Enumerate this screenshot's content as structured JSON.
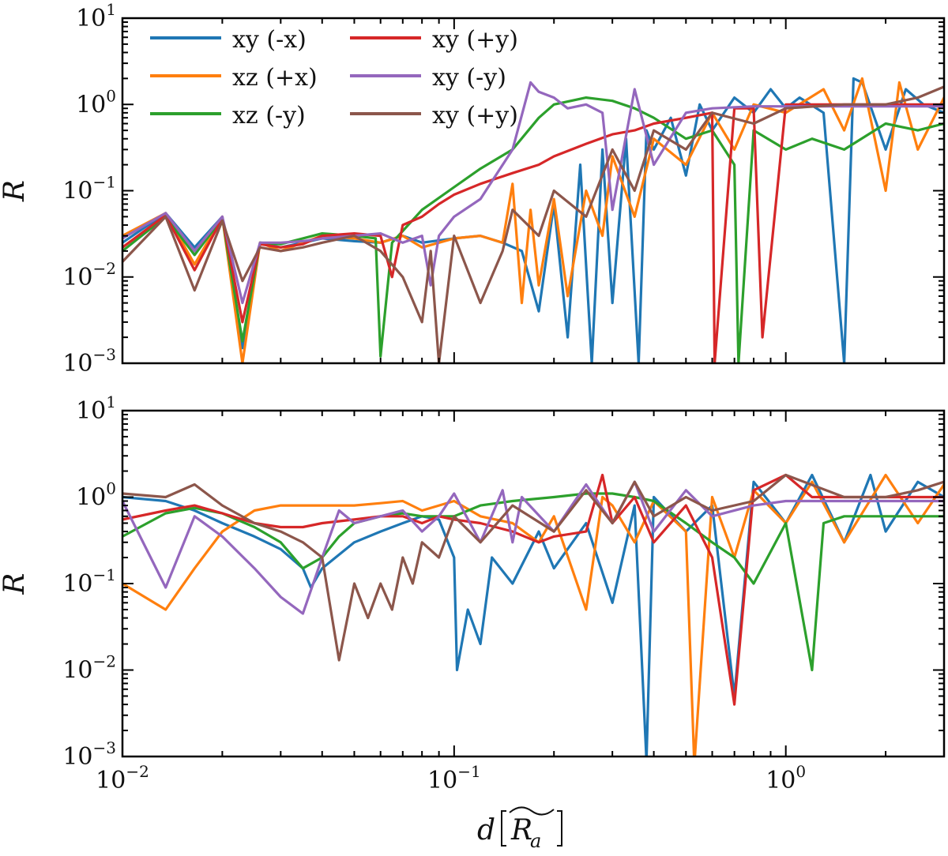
{
  "chart_data": [
    {
      "type": "line",
      "panel": "top",
      "ylabel": "R",
      "xlabel": "",
      "xscale": "log",
      "yscale": "log",
      "xlim": [
        0.01,
        3.0
      ],
      "ylim": [
        0.001,
        10
      ],
      "x_tick_labels": [],
      "y_tick_labels": [
        {
          "base": "10",
          "exp": "−3",
          "value": 0.001
        },
        {
          "base": "10",
          "exp": "−2",
          "value": 0.01
        },
        {
          "base": "10",
          "exp": "−1",
          "value": 0.1
        },
        {
          "base": "10",
          "exp": "0",
          "value": 1
        },
        {
          "base": "10",
          "exp": "1",
          "value": 10
        }
      ],
      "legend": {
        "placement": "top-left",
        "columns": 2
      },
      "series": [
        {
          "name": "xy (-x)",
          "color": "#1f77b4",
          "x": [
            0.01,
            0.0135,
            0.0165,
            0.02,
            0.023,
            0.026,
            0.03,
            0.035,
            0.04,
            0.05,
            0.06,
            0.07,
            0.08,
            0.1,
            0.12,
            0.14,
            0.16,
            0.18,
            0.2,
            0.22,
            0.24,
            0.26,
            0.28,
            0.3,
            0.33,
            0.36,
            0.38,
            0.4,
            0.45,
            0.5,
            0.55,
            0.6,
            0.7,
            0.8,
            0.9,
            1.0,
            1.1,
            1.3,
            1.5,
            1.6,
            1.7,
            2.0,
            2.3,
            2.6,
            3.0
          ],
          "y": [
            0.025,
            0.055,
            0.022,
            0.05,
            0.0015,
            0.025,
            0.022,
            0.025,
            0.028,
            0.026,
            0.025,
            0.03,
            0.025,
            0.028,
            0.03,
            0.025,
            0.02,
            0.004,
            0.07,
            0.002,
            0.2,
            0.001,
            0.3,
            0.005,
            0.4,
            0.001,
            0.5,
            0.3,
            0.7,
            0.15,
            1.0,
            0.5,
            1.2,
            0.8,
            1.5,
            0.9,
            1.2,
            0.8,
            0.001,
            2.0,
            1.8,
            0.3,
            1.5,
            1.0,
            0.8
          ]
        },
        {
          "name": "xz (+x)",
          "color": "#ff7f0e",
          "x": [
            0.01,
            0.0135,
            0.0165,
            0.02,
            0.023,
            0.026,
            0.03,
            0.035,
            0.04,
            0.05,
            0.06,
            0.07,
            0.08,
            0.1,
            0.12,
            0.14,
            0.15,
            0.16,
            0.17,
            0.18,
            0.2,
            0.22,
            0.25,
            0.28,
            0.3,
            0.35,
            0.4,
            0.5,
            0.6,
            0.7,
            0.8,
            1.0,
            1.3,
            1.5,
            1.7,
            2.0,
            2.2,
            2.5,
            3.0
          ],
          "y": [
            0.03,
            0.055,
            0.014,
            0.05,
            0.001,
            0.025,
            0.02,
            0.025,
            0.03,
            0.028,
            0.025,
            0.03,
            0.022,
            0.028,
            0.03,
            0.025,
            0.12,
            0.005,
            0.06,
            0.008,
            0.08,
            0.006,
            0.1,
            0.03,
            0.25,
            0.05,
            0.4,
            0.2,
            0.8,
            0.3,
            1.0,
            0.8,
            1.5,
            0.5,
            2.0,
            0.1,
            1.8,
            0.3,
            1.2
          ]
        },
        {
          "name": "xz (-y)",
          "color": "#2ca02c",
          "x": [
            0.01,
            0.0135,
            0.0165,
            0.02,
            0.023,
            0.026,
            0.03,
            0.035,
            0.04,
            0.05,
            0.058,
            0.06,
            0.065,
            0.08,
            0.1,
            0.12,
            0.15,
            0.18,
            0.2,
            0.25,
            0.3,
            0.35,
            0.4,
            0.5,
            0.6,
            0.7,
            0.72,
            0.8,
            1.0,
            1.2,
            1.5,
            2.0,
            2.5,
            3.0
          ],
          "y": [
            0.02,
            0.05,
            0.018,
            0.048,
            0.0018,
            0.025,
            0.024,
            0.028,
            0.032,
            0.03,
            0.028,
            0.0012,
            0.025,
            0.06,
            0.11,
            0.18,
            0.3,
            0.7,
            1.0,
            1.2,
            1.1,
            0.9,
            0.7,
            0.4,
            0.5,
            0.2,
            0.001,
            0.5,
            0.3,
            0.4,
            0.3,
            0.6,
            0.5,
            0.6
          ]
        },
        {
          "name": "xy (+y)",
          "color": "#d62728",
          "x": [
            0.01,
            0.0135,
            0.0165,
            0.02,
            0.023,
            0.026,
            0.03,
            0.035,
            0.04,
            0.05,
            0.06,
            0.065,
            0.07,
            0.08,
            0.09,
            0.1,
            0.12,
            0.15,
            0.18,
            0.2,
            0.25,
            0.3,
            0.35,
            0.4,
            0.5,
            0.6,
            0.61,
            0.7,
            0.8,
            0.85,
            1.0,
            1.2,
            1.5,
            2.0,
            2.5,
            3.0
          ],
          "y": [
            0.022,
            0.052,
            0.012,
            0.048,
            0.003,
            0.024,
            0.022,
            0.024,
            0.03,
            0.032,
            0.03,
            0.01,
            0.04,
            0.05,
            0.07,
            0.09,
            0.12,
            0.16,
            0.2,
            0.25,
            0.35,
            0.45,
            0.5,
            0.6,
            0.7,
            0.8,
            0.001,
            0.9,
            0.9,
            0.002,
            1.0,
            1.0,
            1.0,
            1.0,
            1.0,
            1.0
          ]
        },
        {
          "name": "xy (-y)",
          "color": "#9467bd",
          "x": [
            0.01,
            0.0135,
            0.0165,
            0.02,
            0.023,
            0.026,
            0.03,
            0.035,
            0.04,
            0.05,
            0.06,
            0.07,
            0.08,
            0.085,
            0.09,
            0.1,
            0.12,
            0.15,
            0.17,
            0.18,
            0.2,
            0.22,
            0.25,
            0.28,
            0.3,
            0.35,
            0.4,
            0.5,
            0.6,
            0.8,
            1.0,
            1.5,
            2.0,
            3.0
          ],
          "y": [
            0.028,
            0.055,
            0.02,
            0.05,
            0.005,
            0.025,
            0.025,
            0.026,
            0.028,
            0.03,
            0.032,
            0.025,
            0.03,
            0.008,
            0.03,
            0.05,
            0.08,
            0.3,
            1.8,
            1.4,
            1.2,
            0.9,
            1.0,
            0.8,
            0.06,
            1.5,
            0.2,
            0.8,
            0.9,
            0.95,
            0.95,
            0.95,
            0.95,
            0.95
          ]
        },
        {
          "name": "xy (+y)",
          "color": "#8c564b",
          "x": [
            0.01,
            0.0135,
            0.0165,
            0.02,
            0.023,
            0.026,
            0.03,
            0.035,
            0.04,
            0.05,
            0.06,
            0.07,
            0.08,
            0.085,
            0.09,
            0.1,
            0.12,
            0.14,
            0.15,
            0.18,
            0.2,
            0.25,
            0.3,
            0.35,
            0.4,
            0.5,
            0.6,
            0.8,
            1.0,
            1.5,
            2.0,
            2.5,
            3.0
          ],
          "y": [
            0.015,
            0.05,
            0.007,
            0.045,
            0.009,
            0.022,
            0.02,
            0.022,
            0.025,
            0.03,
            0.02,
            0.01,
            0.003,
            0.02,
            0.001,
            0.03,
            0.005,
            0.02,
            0.06,
            0.03,
            0.1,
            0.05,
            0.3,
            0.1,
            0.5,
            0.3,
            0.8,
            0.6,
            0.9,
            1.0,
            1.0,
            1.2,
            1.6
          ]
        }
      ]
    },
    {
      "type": "line",
      "panel": "bottom",
      "ylabel": "R",
      "xlabel": "d",
      "xlabel_unit": "R",
      "xlabel_unit_sub": "a",
      "xscale": "log",
      "yscale": "log",
      "xlim": [
        0.01,
        3.0
      ],
      "ylim": [
        0.001,
        10
      ],
      "x_tick_labels": [
        {
          "base": "10",
          "exp": "−2",
          "value": 0.01
        },
        {
          "base": "10",
          "exp": "−1",
          "value": 0.1
        },
        {
          "base": "10",
          "exp": "0",
          "value": 1
        }
      ],
      "y_tick_labels": [
        {
          "base": "10",
          "exp": "−3",
          "value": 0.001
        },
        {
          "base": "10",
          "exp": "−2",
          "value": 0.01
        },
        {
          "base": "10",
          "exp": "−1",
          "value": 0.1
        },
        {
          "base": "10",
          "exp": "0",
          "value": 1
        },
        {
          "base": "10",
          "exp": "1",
          "value": 10
        }
      ],
      "series": [
        {
          "name": "xy (-x)",
          "color": "#1f77b4",
          "x": [
            0.01,
            0.0135,
            0.0165,
            0.02,
            0.025,
            0.03,
            0.035,
            0.037,
            0.04,
            0.05,
            0.06,
            0.07,
            0.08,
            0.09,
            0.1,
            0.102,
            0.11,
            0.12,
            0.13,
            0.15,
            0.18,
            0.2,
            0.25,
            0.3,
            0.35,
            0.38,
            0.4,
            0.5,
            0.6,
            0.7,
            0.8,
            1.0,
            1.2,
            1.5,
            1.8,
            2.0,
            2.5,
            3.0
          ],
          "y": [
            1.0,
            0.9,
            0.7,
            0.5,
            0.35,
            0.25,
            0.15,
            0.09,
            0.15,
            0.3,
            0.4,
            0.5,
            0.6,
            0.55,
            0.2,
            0.01,
            0.05,
            0.02,
            0.2,
            0.1,
            0.4,
            0.15,
            0.5,
            0.06,
            0.8,
            0.0009,
            1.0,
            0.4,
            0.8,
            0.005,
            1.5,
            0.5,
            1.8,
            0.3,
            1.8,
            0.4,
            1.5,
            1.0
          ]
        },
        {
          "name": "xz (+x)",
          "color": "#ff7f0e",
          "x": [
            0.01,
            0.0135,
            0.0165,
            0.02,
            0.025,
            0.03,
            0.035,
            0.04,
            0.05,
            0.06,
            0.07,
            0.08,
            0.1,
            0.12,
            0.15,
            0.18,
            0.2,
            0.25,
            0.28,
            0.3,
            0.35,
            0.4,
            0.5,
            0.53,
            0.6,
            0.7,
            0.8,
            1.0,
            1.2,
            1.5,
            2.0,
            2.5,
            3.0
          ],
          "y": [
            0.1,
            0.05,
            0.15,
            0.4,
            0.7,
            0.8,
            0.8,
            0.8,
            0.8,
            0.85,
            0.9,
            0.7,
            0.9,
            0.6,
            0.5,
            0.3,
            0.6,
            0.05,
            1.0,
            0.8,
            0.3,
            0.9,
            0.4,
            0.0008,
            1.0,
            0.2,
            1.2,
            0.5,
            1.5,
            0.3,
            1.8,
            0.5,
            1.4
          ]
        },
        {
          "name": "xz (-y)",
          "color": "#2ca02c",
          "x": [
            0.01,
            0.0135,
            0.0165,
            0.02,
            0.025,
            0.03,
            0.035,
            0.04,
            0.045,
            0.05,
            0.06,
            0.07,
            0.08,
            0.1,
            0.12,
            0.15,
            0.2,
            0.25,
            0.3,
            0.35,
            0.4,
            0.5,
            0.6,
            0.7,
            0.8,
            1.0,
            1.2,
            1.3,
            1.5,
            2.0,
            2.5,
            3.0
          ],
          "y": [
            0.35,
            0.65,
            0.75,
            0.65,
            0.45,
            0.3,
            0.15,
            0.2,
            0.35,
            0.5,
            0.6,
            0.65,
            0.6,
            0.6,
            0.8,
            0.9,
            1.0,
            1.1,
            1.1,
            1.0,
            0.9,
            0.5,
            0.3,
            0.2,
            0.1,
            0.5,
            0.01,
            0.5,
            0.6,
            0.6,
            0.6,
            0.6
          ]
        },
        {
          "name": "xy (+y)",
          "color": "#d62728",
          "x": [
            0.01,
            0.0135,
            0.0165,
            0.02,
            0.025,
            0.03,
            0.035,
            0.04,
            0.05,
            0.06,
            0.07,
            0.08,
            0.09,
            0.1,
            0.12,
            0.15,
            0.18,
            0.2,
            0.25,
            0.28,
            0.3,
            0.35,
            0.4,
            0.5,
            0.6,
            0.7,
            0.8,
            1.0,
            1.2,
            1.5,
            2.0,
            2.5,
            3.0
          ],
          "y": [
            0.55,
            0.7,
            0.8,
            0.65,
            0.5,
            0.45,
            0.45,
            0.5,
            0.55,
            0.6,
            0.6,
            0.5,
            0.6,
            0.55,
            0.5,
            0.4,
            0.3,
            0.35,
            0.4,
            1.8,
            0.5,
            1.0,
            0.3,
            0.8,
            0.2,
            0.004,
            1.2,
            1.8,
            1.0,
            1.0,
            1.0,
            1.0,
            1.0
          ]
        },
        {
          "name": "xy (-y)",
          "color": "#9467bd",
          "x": [
            0.01,
            0.0135,
            0.0165,
            0.02,
            0.025,
            0.03,
            0.035,
            0.04,
            0.045,
            0.05,
            0.06,
            0.07,
            0.08,
            0.09,
            0.1,
            0.12,
            0.14,
            0.15,
            0.16,
            0.2,
            0.25,
            0.3,
            0.35,
            0.4,
            0.5,
            0.6,
            0.8,
            1.0,
            1.5,
            2.0,
            3.0
          ],
          "y": [
            0.9,
            0.09,
            0.6,
            0.35,
            0.15,
            0.07,
            0.045,
            0.2,
            0.7,
            0.5,
            0.6,
            0.7,
            0.4,
            0.6,
            1.1,
            0.3,
            1.2,
            0.3,
            1.0,
            0.4,
            1.4,
            0.5,
            1.5,
            0.4,
            1.2,
            0.6,
            0.8,
            0.9,
            0.9,
            0.9,
            0.9
          ]
        },
        {
          "name": "xy (+y)",
          "color": "#8c564b",
          "x": [
            0.01,
            0.0135,
            0.0165,
            0.02,
            0.025,
            0.03,
            0.035,
            0.04,
            0.045,
            0.05,
            0.055,
            0.06,
            0.065,
            0.07,
            0.075,
            0.08,
            0.09,
            0.1,
            0.12,
            0.15,
            0.2,
            0.25,
            0.3,
            0.35,
            0.4,
            0.5,
            0.6,
            0.8,
            1.0,
            1.5,
            2.0,
            2.5,
            3.0
          ],
          "y": [
            1.1,
            1.0,
            1.4,
            0.8,
            0.5,
            0.4,
            0.3,
            0.2,
            0.013,
            0.1,
            0.04,
            0.1,
            0.05,
            0.2,
            0.1,
            0.3,
            0.2,
            0.6,
            0.3,
            0.8,
            0.4,
            1.2,
            0.5,
            1.5,
            0.6,
            1.0,
            0.7,
            0.9,
            1.8,
            1.0,
            1.0,
            1.2,
            1.5
          ]
        }
      ]
    }
  ]
}
